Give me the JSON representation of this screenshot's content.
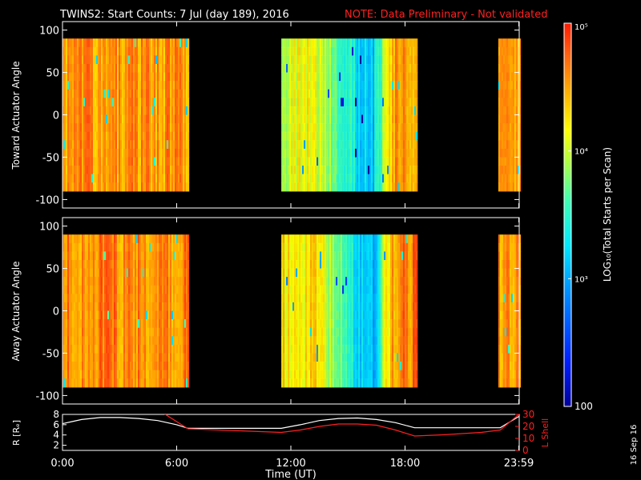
{
  "header": {
    "title": "TWINS2: Start Counts:  7 Jul (day 189), 2016",
    "note": "NOTE: Data Preliminary - Not validated"
  },
  "side_stamp": "16 Sep 16",
  "colors": {
    "background": "#000000",
    "axes": "#ffffff",
    "note": "#ff2020",
    "r_line": "#ffffff",
    "lshell_line": "#ff2020"
  },
  "chart_data": [
    {
      "type": "heatmap",
      "title": "",
      "ylabel": "Toward Actuator Angle",
      "xlim": [
        0,
        24
      ],
      "ylim": [
        -110,
        110
      ],
      "yticks": [
        -100,
        -50,
        0,
        50,
        100
      ],
      "y_extent": [
        -90,
        90
      ],
      "data_segments_hours": [
        [
          0,
          6.6
        ],
        [
          11.5,
          18.6
        ],
        [
          22.9,
          24
        ]
      ],
      "color_log10_value_profile": [
        {
          "x": 0,
          "v": 4.55
        },
        {
          "x": 6.6,
          "v": 4.55
        },
        {
          "x": 11.5,
          "v": 4.05
        },
        {
          "x": 13.0,
          "v": 4.1
        },
        {
          "x": 14.5,
          "v": 3.7
        },
        {
          "x": 15.5,
          "v": 3.25
        },
        {
          "x": 16.3,
          "v": 3.15
        },
        {
          "x": 17.3,
          "v": 4.5
        },
        {
          "x": 18.6,
          "v": 4.6
        },
        {
          "x": 22.9,
          "v": 4.45
        },
        {
          "x": 24,
          "v": 4.45
        }
      ]
    },
    {
      "type": "heatmap",
      "title": "",
      "ylabel": "Away Actuator Angle",
      "xlim": [
        0,
        24
      ],
      "ylim": [
        -110,
        110
      ],
      "yticks": [
        -100,
        -50,
        0,
        50,
        100
      ],
      "y_extent": [
        -90,
        90
      ],
      "data_segments_hours": [
        [
          0,
          6.6
        ],
        [
          11.5,
          18.6
        ],
        [
          22.9,
          24
        ]
      ],
      "color_log10_value_profile": [
        {
          "x": 0,
          "v": 4.6
        },
        {
          "x": 6.6,
          "v": 4.6
        },
        {
          "x": 11.5,
          "v": 4.25
        },
        {
          "x": 13.0,
          "v": 4.3
        },
        {
          "x": 14.5,
          "v": 3.8
        },
        {
          "x": 15.5,
          "v": 3.25
        },
        {
          "x": 16.3,
          "v": 3.1
        },
        {
          "x": 17.3,
          "v": 4.55
        },
        {
          "x": 18.6,
          "v": 4.65
        },
        {
          "x": 22.9,
          "v": 4.55
        },
        {
          "x": 24,
          "v": 4.55
        }
      ]
    },
    {
      "type": "line",
      "title": "",
      "xlabel": "Time (UT)",
      "xticks": [
        "0:00",
        "6:00",
        "12:00",
        "18:00",
        "23:59"
      ],
      "xtick_hours": [
        0,
        6,
        12,
        18,
        23.98
      ],
      "xlim": [
        0,
        24
      ],
      "ylabel": "R [Rₑ]",
      "ylabel_right": "L Shell",
      "ylim": [
        1,
        8
      ],
      "yticks": [
        2,
        4,
        6,
        8
      ],
      "ylim_right": [
        0,
        30
      ],
      "yticks_right": [
        0,
        10,
        20,
        30
      ],
      "series": [
        {
          "name": "R",
          "axis": "left",
          "x": [
            0,
            0.5,
            1,
            2,
            3,
            4,
            5,
            6,
            6.6,
            9,
            11.5,
            12.5,
            13.5,
            14.5,
            15.5,
            16.5,
            17.5,
            18.5,
            20,
            22,
            23,
            23.98
          ],
          "y": [
            6.2,
            6.6,
            7.0,
            7.4,
            7.4,
            7.2,
            6.8,
            6.0,
            5.3,
            5.3,
            5.3,
            6.0,
            6.8,
            7.2,
            7.3,
            7.0,
            6.4,
            5.4,
            5.4,
            5.4,
            5.4,
            7.6
          ]
        },
        {
          "name": "L Shell",
          "axis": "right",
          "x": [
            0,
            0.3,
            5.3,
            6.6,
            11.5,
            12.5,
            13.5,
            14.5,
            15.5,
            16.5,
            17.5,
            18.5,
            20,
            22,
            23,
            23.98
          ],
          "y": [
            30,
            31,
            31,
            18,
            15,
            17,
            20,
            22,
            22,
            21,
            17,
            12,
            13,
            15,
            17,
            30
          ]
        }
      ]
    },
    {
      "type": "colorbar",
      "label": "LOG₁₀(Total Starts per Scan)",
      "scale": "log",
      "range": [
        100,
        100000
      ],
      "tick_labels": [
        "100",
        "10³",
        "10⁴",
        "10⁵"
      ],
      "tick_values": [
        100,
        1000,
        10000,
        100000
      ]
    }
  ]
}
